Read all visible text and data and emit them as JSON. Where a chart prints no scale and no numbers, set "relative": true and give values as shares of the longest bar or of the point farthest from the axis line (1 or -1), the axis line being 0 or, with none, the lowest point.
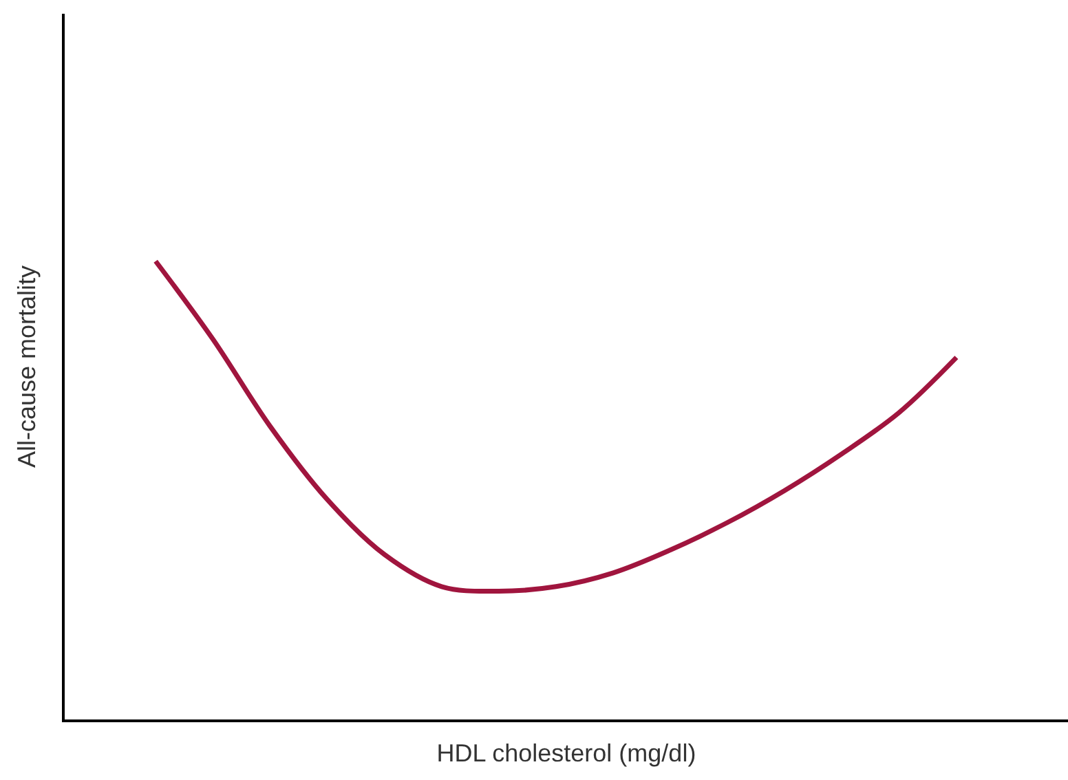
{
  "chart_data": {
    "type": "line",
    "relative": true,
    "xlabel": "HDL cholesterol (mg/dl)",
    "ylabel": "All-cause mortality",
    "categories": [
      null,
      null,
      null,
      null,
      null,
      null,
      null,
      null,
      null,
      null,
      null,
      null,
      null,
      null,
      null
    ],
    "series": [
      {
        "color": "#a0153e",
        "values": [
          1.0,
          0.83,
          0.64,
          0.48,
          0.36,
          0.29,
          0.28,
          0.29,
          0.32,
          0.37,
          0.43,
          0.5,
          0.58,
          0.67,
          0.79
        ]
      }
    ],
    "marker": "none",
    "line_style": "solid"
  }
}
